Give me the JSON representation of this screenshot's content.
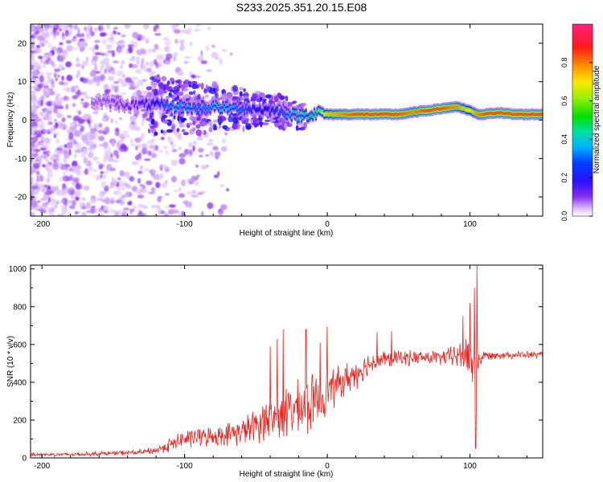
{
  "title": "S233.2025.351.20.15.E08",
  "colors": {
    "snr_line": "#e8231f",
    "ridge_low": "#5a12e8",
    "ridge_high": "#e8231f"
  },
  "chart_data": [
    {
      "type": "heatmap",
      "name": "spectrogram",
      "xlabel": "Height of straight line (km)",
      "ylabel": "Frequency (Hz)",
      "xlim": [
        -208,
        151
      ],
      "ylim": [
        -25,
        25
      ],
      "xticks": [
        -200,
        -100,
        0,
        100
      ],
      "yticks": [
        -20,
        -10,
        0,
        10,
        20
      ],
      "colorbar": {
        "label": "Normalized spectral amplitude",
        "range": [
          0,
          1
        ],
        "ticks": [
          "0.0",
          "0.2",
          "0.4",
          "0.6",
          "0.8"
        ],
        "tick_values": [
          0,
          0.2,
          0.4,
          0.6,
          0.8
        ],
        "colormap": [
          "#ffffff",
          "#c89bf5",
          "#7a1ff0",
          "#1010ff",
          "#00c8ff",
          "#00e060",
          "#a0ff00",
          "#ffee00",
          "#ff8800",
          "#ff1010",
          "#ff2080"
        ]
      },
      "ridge": {
        "x": [
          -165,
          -140,
          -120,
          -105,
          -90,
          -80,
          -70,
          -60,
          -50,
          -40,
          -30,
          -20,
          -15,
          -10,
          -5,
          0,
          10,
          20,
          30,
          40,
          50,
          60,
          70,
          80,
          90,
          100,
          105,
          110,
          120,
          130,
          151
        ],
        "freq": [
          5,
          4,
          4,
          3.5,
          3,
          3.5,
          3,
          3,
          3,
          2.5,
          2,
          1,
          1.5,
          1.5,
          2,
          1.5,
          1.5,
          1.5,
          1.5,
          1.5,
          1.5,
          2,
          2.5,
          3,
          3.5,
          2.5,
          1.5,
          1.5,
          2,
          1.5,
          1.5
        ],
        "amplitude": [
          0.15,
          0.2,
          0.3,
          0.4,
          0.35,
          0.4,
          0.4,
          0.35,
          0.3,
          0.3,
          0.35,
          0.5,
          0.45,
          0.5,
          0.55,
          0.75,
          0.8,
          0.85,
          0.85,
          0.85,
          0.85,
          0.8,
          0.85,
          0.85,
          0.8,
          0.7,
          0.8,
          0.85,
          0.85,
          0.85,
          0.85
        ]
      },
      "noise_region_xmax": -120
    },
    {
      "type": "line",
      "name": "snr",
      "xlabel": "Height of straight line (km)",
      "ylabel": "SNR (10 * v/v)",
      "xlim": [
        -208,
        151
      ],
      "ylim": [
        0,
        1020
      ],
      "xticks": [
        -200,
        -100,
        0,
        100
      ],
      "yticks": [
        0,
        200,
        400,
        600,
        800,
        1000
      ],
      "envelope": {
        "x": [
          -208,
          -180,
          -150,
          -130,
          -120,
          -110,
          -100,
          -90,
          -80,
          -70,
          -60,
          -50,
          -45,
          -40,
          -35,
          -30,
          -25,
          -20,
          -15,
          -10,
          0,
          10,
          20,
          30,
          40,
          50,
          60,
          70,
          80,
          90,
          95,
          100,
          104,
          106,
          110,
          120,
          130,
          140,
          151
        ],
        "mean": [
          18,
          18,
          25,
          30,
          40,
          70,
          100,
          110,
          115,
          125,
          140,
          170,
          200,
          200,
          220,
          230,
          250,
          260,
          270,
          290,
          350,
          400,
          450,
          500,
          520,
          530,
          530,
          530,
          530,
          540,
          545,
          530,
          450,
          520,
          540,
          545,
          545,
          545,
          545
        ],
        "spread": [
          10,
          10,
          12,
          15,
          20,
          40,
          50,
          50,
          50,
          60,
          70,
          90,
          110,
          120,
          130,
          140,
          140,
          140,
          150,
          150,
          110,
          90,
          80,
          60,
          50,
          40,
          40,
          40,
          40,
          60,
          90,
          120,
          200,
          60,
          25,
          20,
          20,
          20,
          20
        ]
      },
      "spikes": [
        {
          "x": -40,
          "y": 590
        },
        {
          "x": -35,
          "y": 630
        },
        {
          "x": -31,
          "y": 680
        },
        {
          "x": -15,
          "y": 680
        },
        {
          "x": -5,
          "y": 610
        },
        {
          "x": 0,
          "y": 695
        },
        {
          "x": 35,
          "y": 665
        },
        {
          "x": 45,
          "y": 670
        },
        {
          "x": 95,
          "y": 750
        },
        {
          "x": 100,
          "y": 820
        },
        {
          "x": 103,
          "y": 900
        },
        {
          "x": 105,
          "y": 1020
        },
        {
          "x": 104,
          "y": 50
        }
      ]
    }
  ]
}
